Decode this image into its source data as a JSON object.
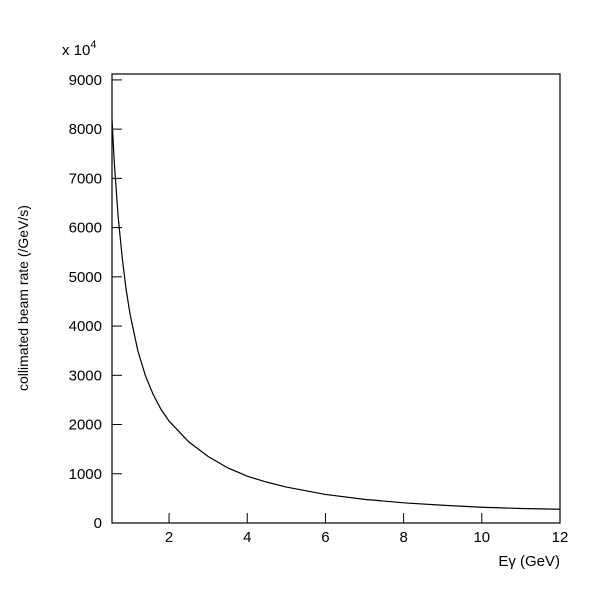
{
  "chart_data": {
    "type": "line",
    "y_label": "collimated beam rate (/GeV/s)",
    "x_label": "Eγ (GeV)",
    "multiplier": {
      "base": "x 10",
      "exponent": "4"
    },
    "x": [
      0.54,
      0.6,
      0.7,
      0.8,
      0.9,
      1.0,
      1.2,
      1.4,
      1.6,
      1.8,
      2,
      2.5,
      3,
      3.5,
      4,
      4.5,
      5,
      6,
      7,
      8,
      9,
      10,
      11,
      12
    ],
    "series": [
      {
        "color": "#000000",
        "values": [
          8200,
          7300,
          6200,
          5400,
          4750,
          4250,
          3500,
          2980,
          2600,
          2300,
          2070,
          1650,
          1350,
          1120,
          950,
          830,
          730,
          580,
          480,
          410,
          360,
          320,
          295,
          280
        ]
      }
    ],
    "xlim": [
      0.54,
      12
    ],
    "ylim": [
      0,
      9120
    ],
    "xticks": [
      2,
      4,
      6,
      8,
      10,
      12
    ],
    "yticks": [
      0,
      1000,
      2000,
      3000,
      4000,
      5000,
      6000,
      7000,
      8000,
      9000
    ]
  }
}
